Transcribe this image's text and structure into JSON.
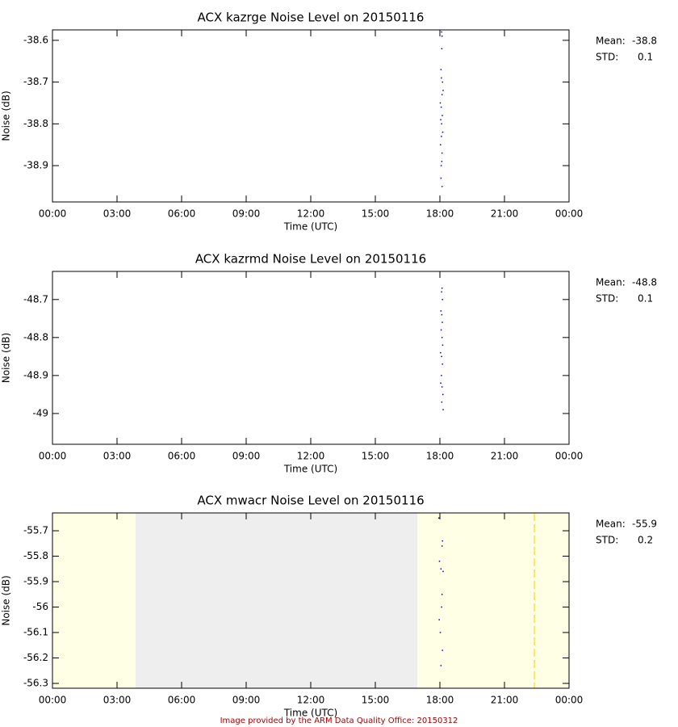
{
  "chart_data": [
    {
      "type": "scatter",
      "title": "ACX kazrge Noise Level on 20150116",
      "x_label": "Time (UTC)",
      "y_label": "Noise (dB)",
      "color": "#0000cc",
      "x": [
        18.08,
        18.1,
        18.09,
        18.05,
        18.07,
        18.12,
        18.15,
        18.1,
        18.02,
        18.06,
        18.11,
        18.04,
        18.08,
        18.13,
        18.07,
        18.03,
        18.1,
        18.09,
        18.06,
        18.05,
        18.1
      ],
      "values": [
        -38.58,
        -38.59,
        -38.62,
        -38.67,
        -38.69,
        -38.7,
        -38.72,
        -38.73,
        -38.75,
        -38.76,
        -38.78,
        -38.79,
        -38.8,
        -38.82,
        -38.83,
        -38.85,
        -38.87,
        -38.89,
        -38.9,
        -38.93,
        -38.95
      ],
      "xlim": [
        0,
        24
      ],
      "xticks": [
        {
          "value": 0,
          "label": "00:00"
        },
        {
          "value": 3,
          "label": "03:00"
        },
        {
          "value": 6,
          "label": "06:00"
        },
        {
          "value": 9,
          "label": "09:00"
        },
        {
          "value": 12,
          "label": "12:00"
        },
        {
          "value": 15,
          "label": "15:00"
        },
        {
          "value": 18,
          "label": "18:00"
        },
        {
          "value": 21,
          "label": "21:00"
        },
        {
          "value": 24,
          "label": "00:00"
        }
      ],
      "ylim": [
        -38.987,
        -38.575
      ],
      "yticks": [
        -38.6,
        -38.7,
        -38.8,
        -38.9
      ],
      "stats": {
        "mean_label": "Mean:",
        "mean": -38.8,
        "std_label": "STD:",
        "std": 0.1
      }
    },
    {
      "type": "scatter",
      "title": "ACX kazrmd Noise Level on 20150116",
      "x_label": "Time (UTC)",
      "y_label": "Noise (dB)",
      "color": "#0000cc",
      "x": [
        18.1,
        18.08,
        18.12,
        18.05,
        18.09,
        18.11,
        18.06,
        18.1,
        18.13,
        18.03,
        18.08,
        18.12,
        18.07,
        18.04,
        18.1,
        18.14,
        18.09,
        18.15
      ],
      "values": [
        -48.67,
        -48.68,
        -48.7,
        -48.73,
        -48.74,
        -48.76,
        -48.78,
        -48.8,
        -48.82,
        -48.84,
        -48.85,
        -48.87,
        -48.9,
        -48.92,
        -48.93,
        -48.95,
        -48.97,
        -48.99
      ],
      "xlim": [
        0,
        24
      ],
      "xticks": [
        {
          "value": 0,
          "label": "00:00"
        },
        {
          "value": 3,
          "label": "03:00"
        },
        {
          "value": 6,
          "label": "06:00"
        },
        {
          "value": 9,
          "label": "09:00"
        },
        {
          "value": 12,
          "label": "12:00"
        },
        {
          "value": 15,
          "label": "15:00"
        },
        {
          "value": 18,
          "label": "18:00"
        },
        {
          "value": 21,
          "label": "21:00"
        },
        {
          "value": 24,
          "label": "00:00"
        }
      ],
      "ylim": [
        -49.081,
        -48.626
      ],
      "yticks": [
        -48.7,
        -48.8,
        -48.9,
        -49.0
      ],
      "stats": {
        "mean_label": "Mean:",
        "mean": -48.8,
        "std_label": "STD:",
        "std": 0.1
      }
    },
    {
      "type": "scatter",
      "title": "ACX mwacr Noise Level on 20150116",
      "x_label": "Time (UTC)",
      "y_label": "Noise (dB)",
      "color": "#0000cc",
      "x": [
        17.95,
        18.12,
        18.1,
        17.98,
        18.05,
        18.15,
        18.1,
        18.08,
        17.97,
        18.02,
        18.12,
        18.05
      ],
      "values": [
        -55.65,
        -55.74,
        -55.76,
        -55.82,
        -55.85,
        -55.86,
        -55.95,
        -56.0,
        -56.05,
        -56.1,
        -56.17,
        -56.23
      ],
      "xlim": [
        0,
        24
      ],
      "xticks": [
        {
          "value": 0,
          "label": "00:00"
        },
        {
          "value": 3,
          "label": "03:00"
        },
        {
          "value": 6,
          "label": "06:00"
        },
        {
          "value": 9,
          "label": "09:00"
        },
        {
          "value": 12,
          "label": "12:00"
        },
        {
          "value": 15,
          "label": "15:00"
        },
        {
          "value": 18,
          "label": "18:00"
        },
        {
          "value": 21,
          "label": "21:00"
        },
        {
          "value": 24,
          "label": "00:00"
        }
      ],
      "ylim": [
        -56.319,
        -55.63
      ],
      "yticks": [
        -55.7,
        -55.8,
        -55.9,
        -56.0,
        -56.1,
        -56.2,
        -56.3
      ],
      "shaded_regions": [
        {
          "start": 0,
          "end": 3.86,
          "color": "#ffffe6"
        },
        {
          "start": 3.86,
          "end": 16.95,
          "color": "#eeeeee"
        },
        {
          "start": 16.95,
          "end": 24,
          "color": "#ffffe6"
        }
      ],
      "vlines": [
        {
          "value": 22.39,
          "color": "#ffcc00"
        }
      ],
      "stats": {
        "mean_label": "Mean:",
        "mean": -55.9,
        "std_label": "STD:",
        "std": 0.2
      }
    }
  ],
  "footer": "Image provided by the ARM Data Quality Office: 20150312"
}
